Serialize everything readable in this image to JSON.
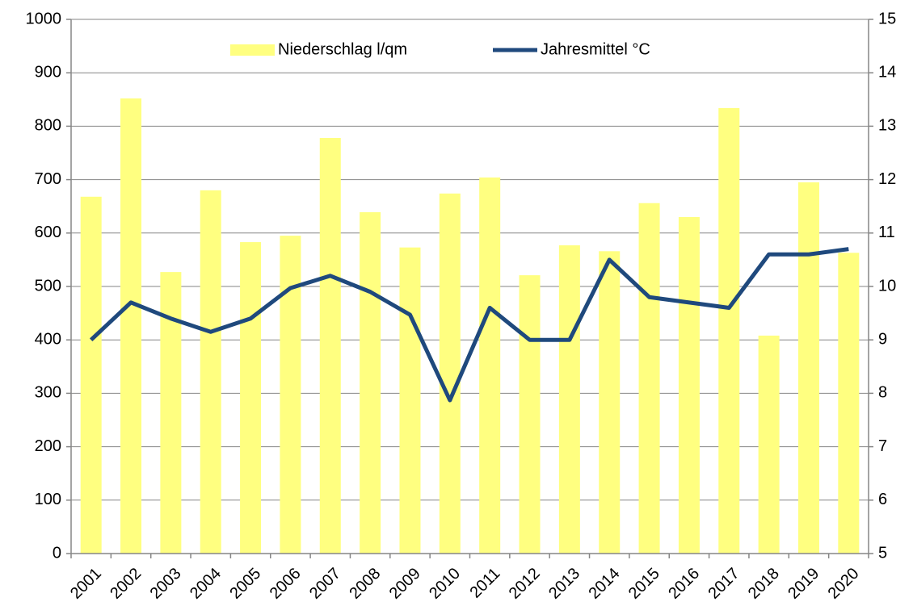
{
  "chart_data": {
    "type": "bar_line",
    "categories": [
      "2001",
      "2002",
      "2003",
      "2004",
      "2005",
      "2006",
      "2007",
      "2008",
      "2009",
      "2010",
      "2011",
      "2012",
      "2013",
      "2014",
      "2015",
      "2016",
      "2017",
      "2018",
      "2019",
      "2020"
    ],
    "series": [
      {
        "name": "Niederschlag l/qm",
        "type": "bar",
        "color": "#ffff80",
        "values": [
          668,
          852,
          527,
          680,
          583,
          595,
          778,
          639,
          573,
          674,
          704,
          521,
          577,
          566,
          656,
          630,
          834,
          408,
          695,
          563
        ]
      },
      {
        "name": "Jahresmittel °C",
        "type": "line",
        "axis": "y2",
        "color": "#1f497d",
        "values": [
          9.0,
          9.7,
          9.4,
          9.15,
          9.4,
          9.97,
          10.2,
          9.9,
          9.47,
          7.87,
          9.6,
          9.0,
          9.0,
          10.5,
          9.8,
          9.7,
          9.6,
          10.6,
          10.6,
          10.7
        ]
      }
    ],
    "ylim": [
      0,
      1000
    ],
    "yticks": [
      0,
      100,
      200,
      300,
      400,
      500,
      600,
      700,
      800,
      900,
      1000
    ],
    "y2lim": [
      5,
      15
    ],
    "y2ticks": [
      5,
      6,
      7,
      8,
      9,
      10,
      11,
      12,
      13,
      14,
      15
    ],
    "grid": true,
    "legend": "top"
  }
}
